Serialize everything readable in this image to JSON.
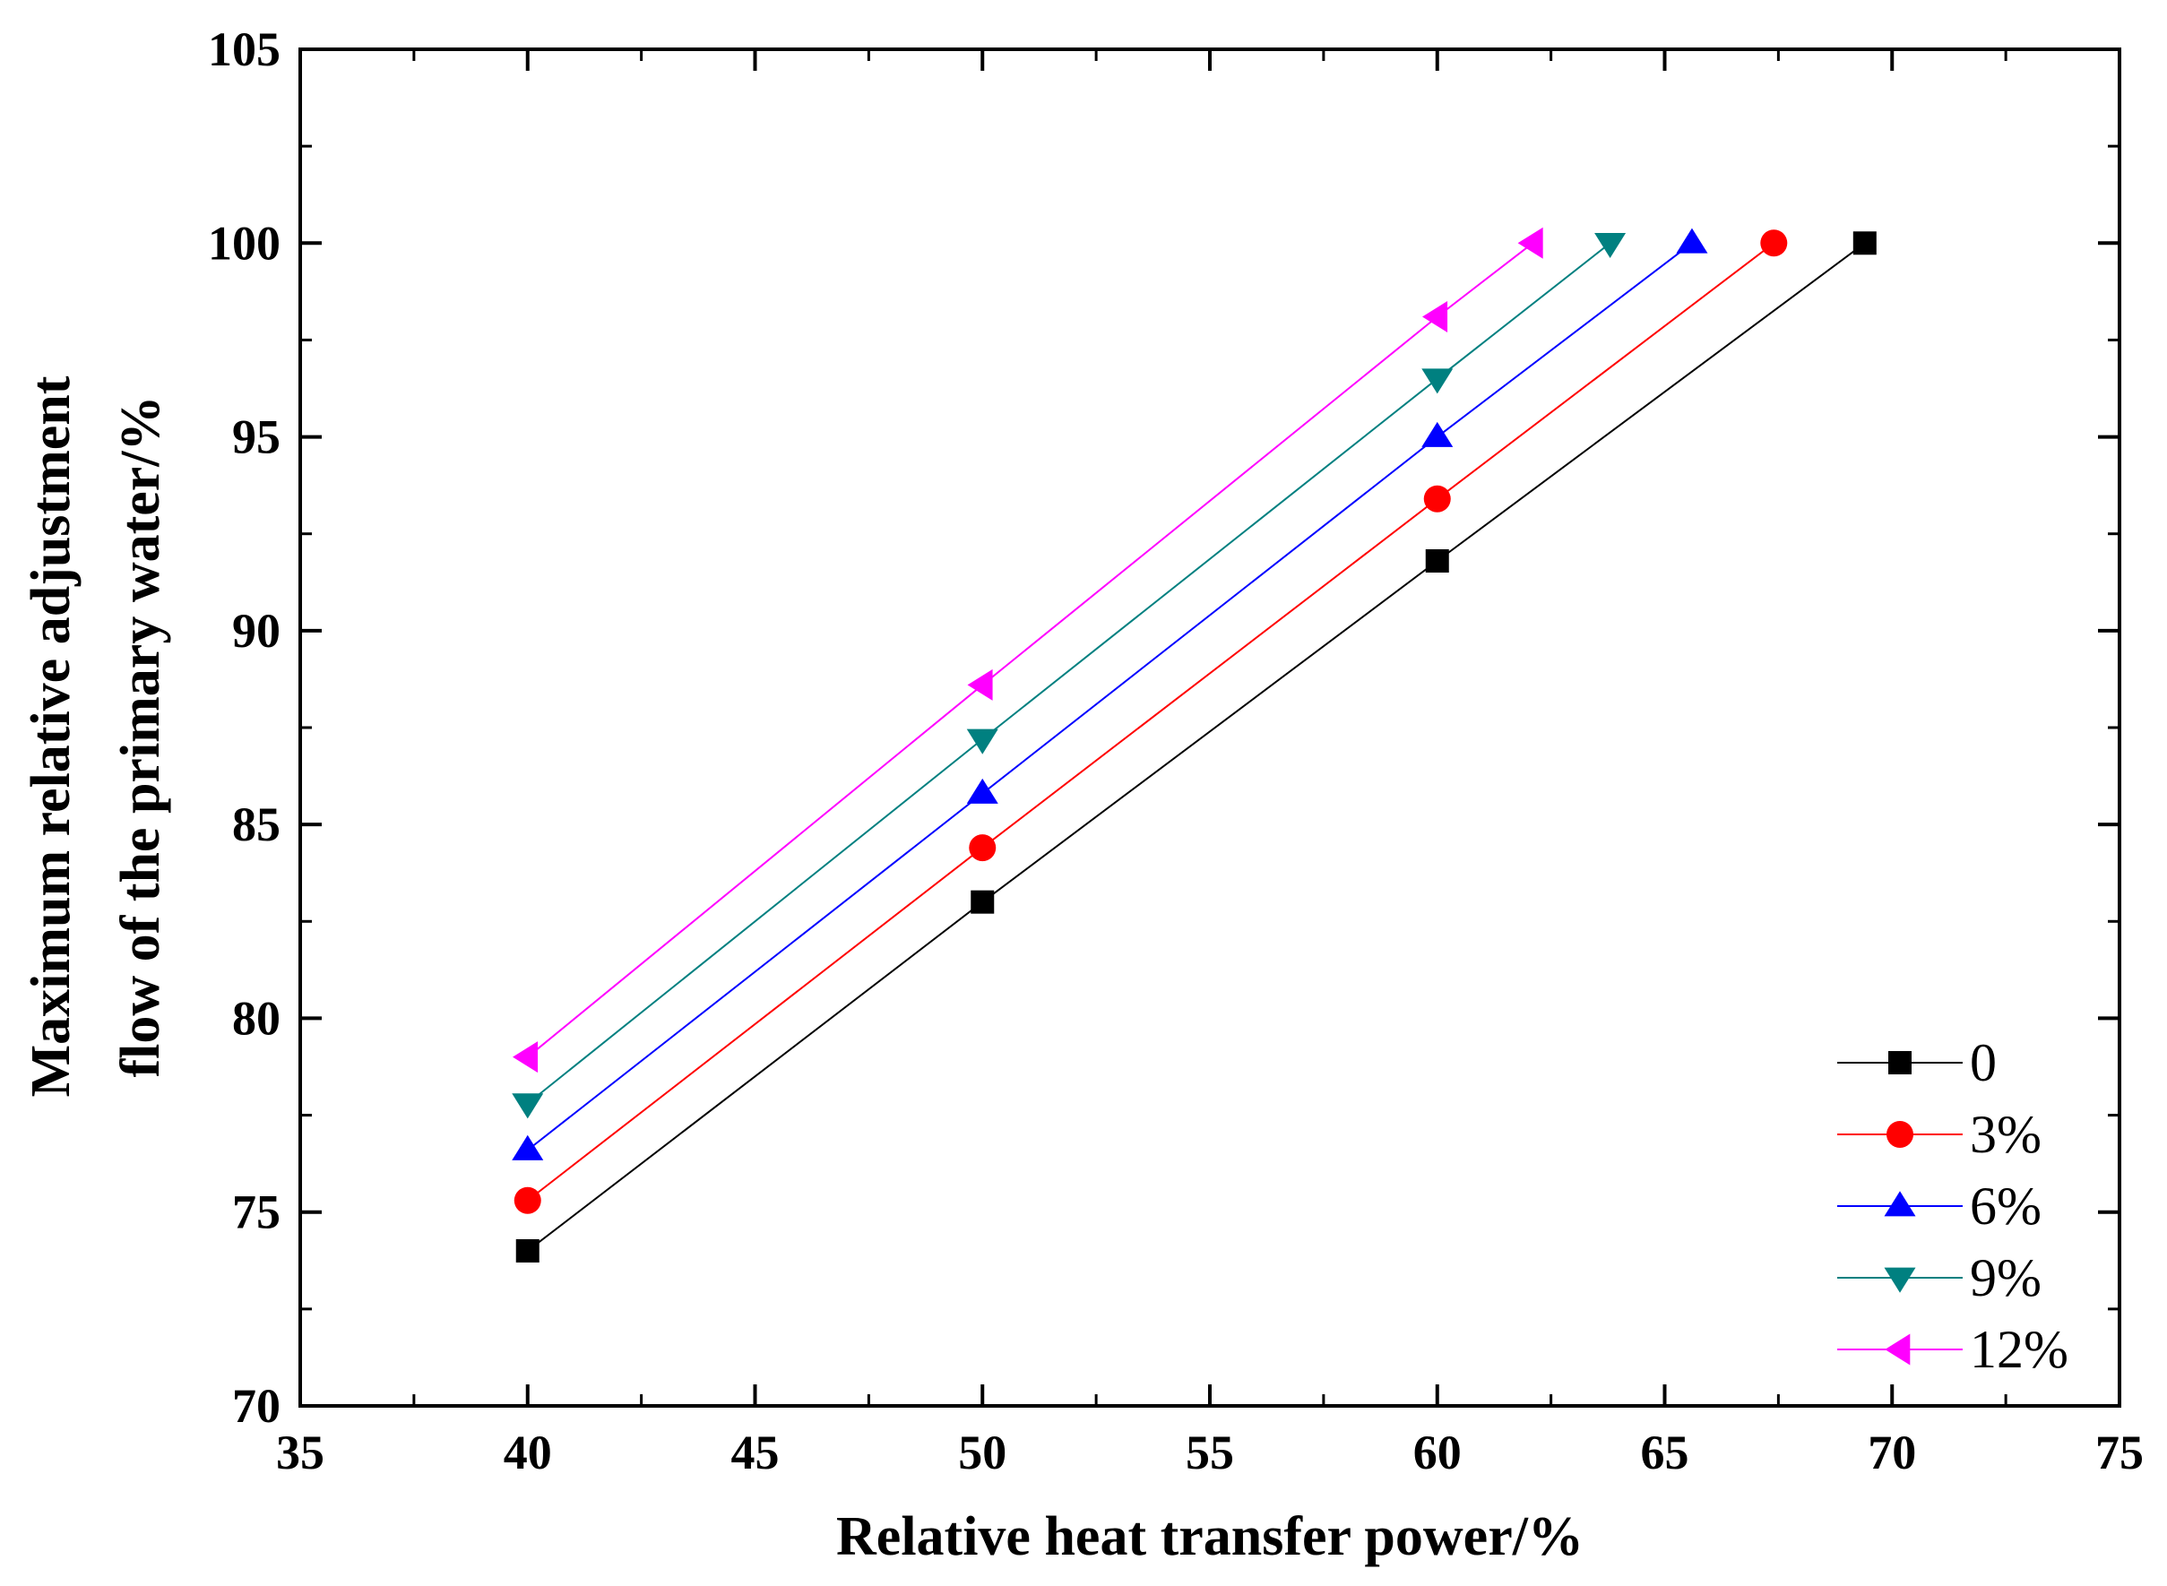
{
  "chart_data": {
    "type": "line",
    "title": "",
    "xlabel": "Relative heat transfer power/%",
    "ylabel_lines": [
      "Maximum relative adjustment",
      "flow of the primary water/%"
    ],
    "xlim": [
      35,
      75
    ],
    "ylim": [
      70,
      105
    ],
    "xticks": [
      "35",
      "40",
      "45",
      "50",
      "55",
      "60",
      "65",
      "70",
      "75"
    ],
    "yticks": [
      "70",
      "75",
      "80",
      "85",
      "90",
      "95",
      "100",
      "105"
    ],
    "grid": false,
    "legend_position": "bottom-right",
    "series": [
      {
        "name": "0",
        "marker": "square",
        "color": "#000000",
        "x": [
          40,
          50,
          60,
          69.4
        ],
        "y": [
          74.0,
          83.0,
          91.8,
          100.0
        ]
      },
      {
        "name": "3%",
        "marker": "circle",
        "color": "#ff0000",
        "x": [
          40,
          50,
          60,
          67.4
        ],
        "y": [
          75.3,
          84.4,
          93.4,
          100.0
        ]
      },
      {
        "name": "6%",
        "marker": "triangle-up",
        "color": "#0000ff",
        "x": [
          40,
          50,
          60,
          65.6
        ],
        "y": [
          76.6,
          85.8,
          95.0,
          100.0
        ]
      },
      {
        "name": "9%",
        "marker": "triangle-down",
        "color": "#008080",
        "x": [
          40,
          50,
          60,
          63.8
        ],
        "y": [
          77.8,
          87.2,
          96.5,
          100.0
        ]
      },
      {
        "name": "12%",
        "marker": "triangle-left",
        "color": "#ff00ff",
        "x": [
          40,
          50,
          60,
          62.1
        ],
        "y": [
          79.0,
          88.6,
          98.1,
          100.0
        ]
      }
    ]
  }
}
